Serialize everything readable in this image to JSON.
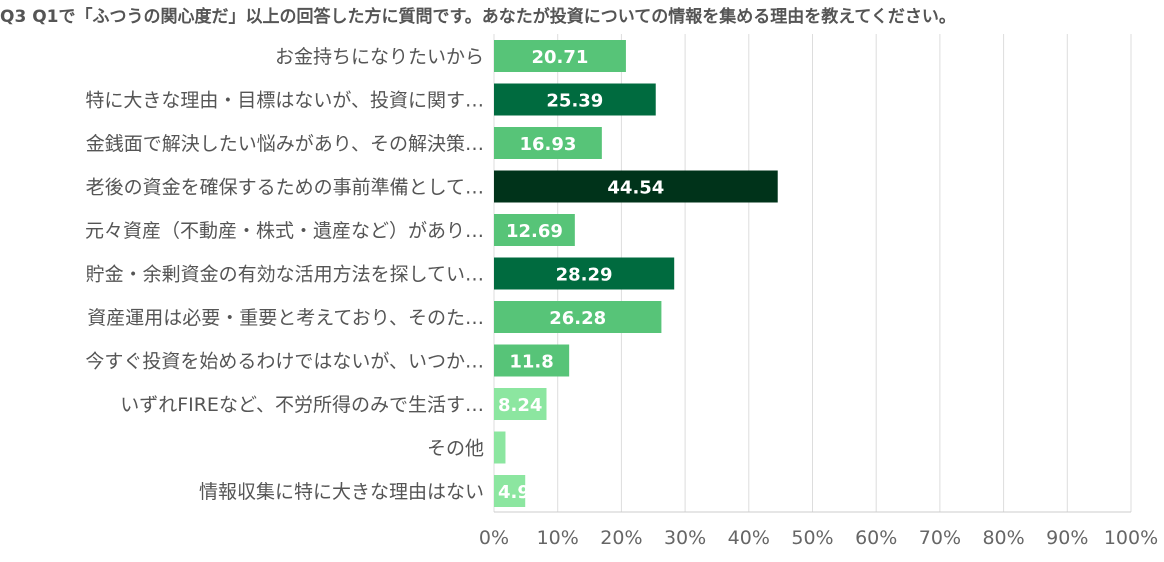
{
  "chart_data": {
    "type": "bar",
    "orientation": "horizontal",
    "title": "Q3 Q1で「ふつうの関心度だ」以上の回答した方に質問です。あなたが投資についての情報を集める理由を教えてください。",
    "categories": [
      "お金持ちになりたいから",
      "特に大きな理由・目標はないが、投資に関す…",
      "金銭面で解決したい悩みがあり、その解決策…",
      "老後の資金を確保するための事前準備として…",
      "元々資産（不動産・株式・遺産など）があり…",
      "貯金・余剰資金の有効な活用方法を探してい…",
      "資産運用は必要・重要と考えており、そのた…",
      "今すぐ投資を始めるわけではないが、いつか…",
      "いずれFIREなど、不労所得のみで生活す…",
      "その他",
      "情報収集に特に大きな理由はない"
    ],
    "values": [
      20.71,
      25.39,
      16.93,
      44.54,
      12.69,
      28.29,
      26.28,
      11.8,
      8.24,
      1.8,
      4.9
    ],
    "data_labels": [
      "20.71",
      "25.39",
      "16.93",
      "44.54",
      "12.69",
      "28.29",
      "26.28",
      "11.8",
      "8.24",
      "",
      "4.9"
    ],
    "colors": [
      "#57c478",
      "#006b3f",
      "#57c478",
      "#00331a",
      "#57c478",
      "#006b3f",
      "#57c478",
      "#57c478",
      "#8ce6a0",
      "#8ce6a0",
      "#8ce6a0"
    ],
    "xlim": [
      0,
      100
    ],
    "xticks": [
      "0%",
      "10%",
      "20%",
      "30%",
      "40%",
      "50%",
      "60%",
      "70%",
      "80%",
      "90%",
      "100%"
    ],
    "xlabel": "",
    "ylabel": "",
    "grid": true
  }
}
